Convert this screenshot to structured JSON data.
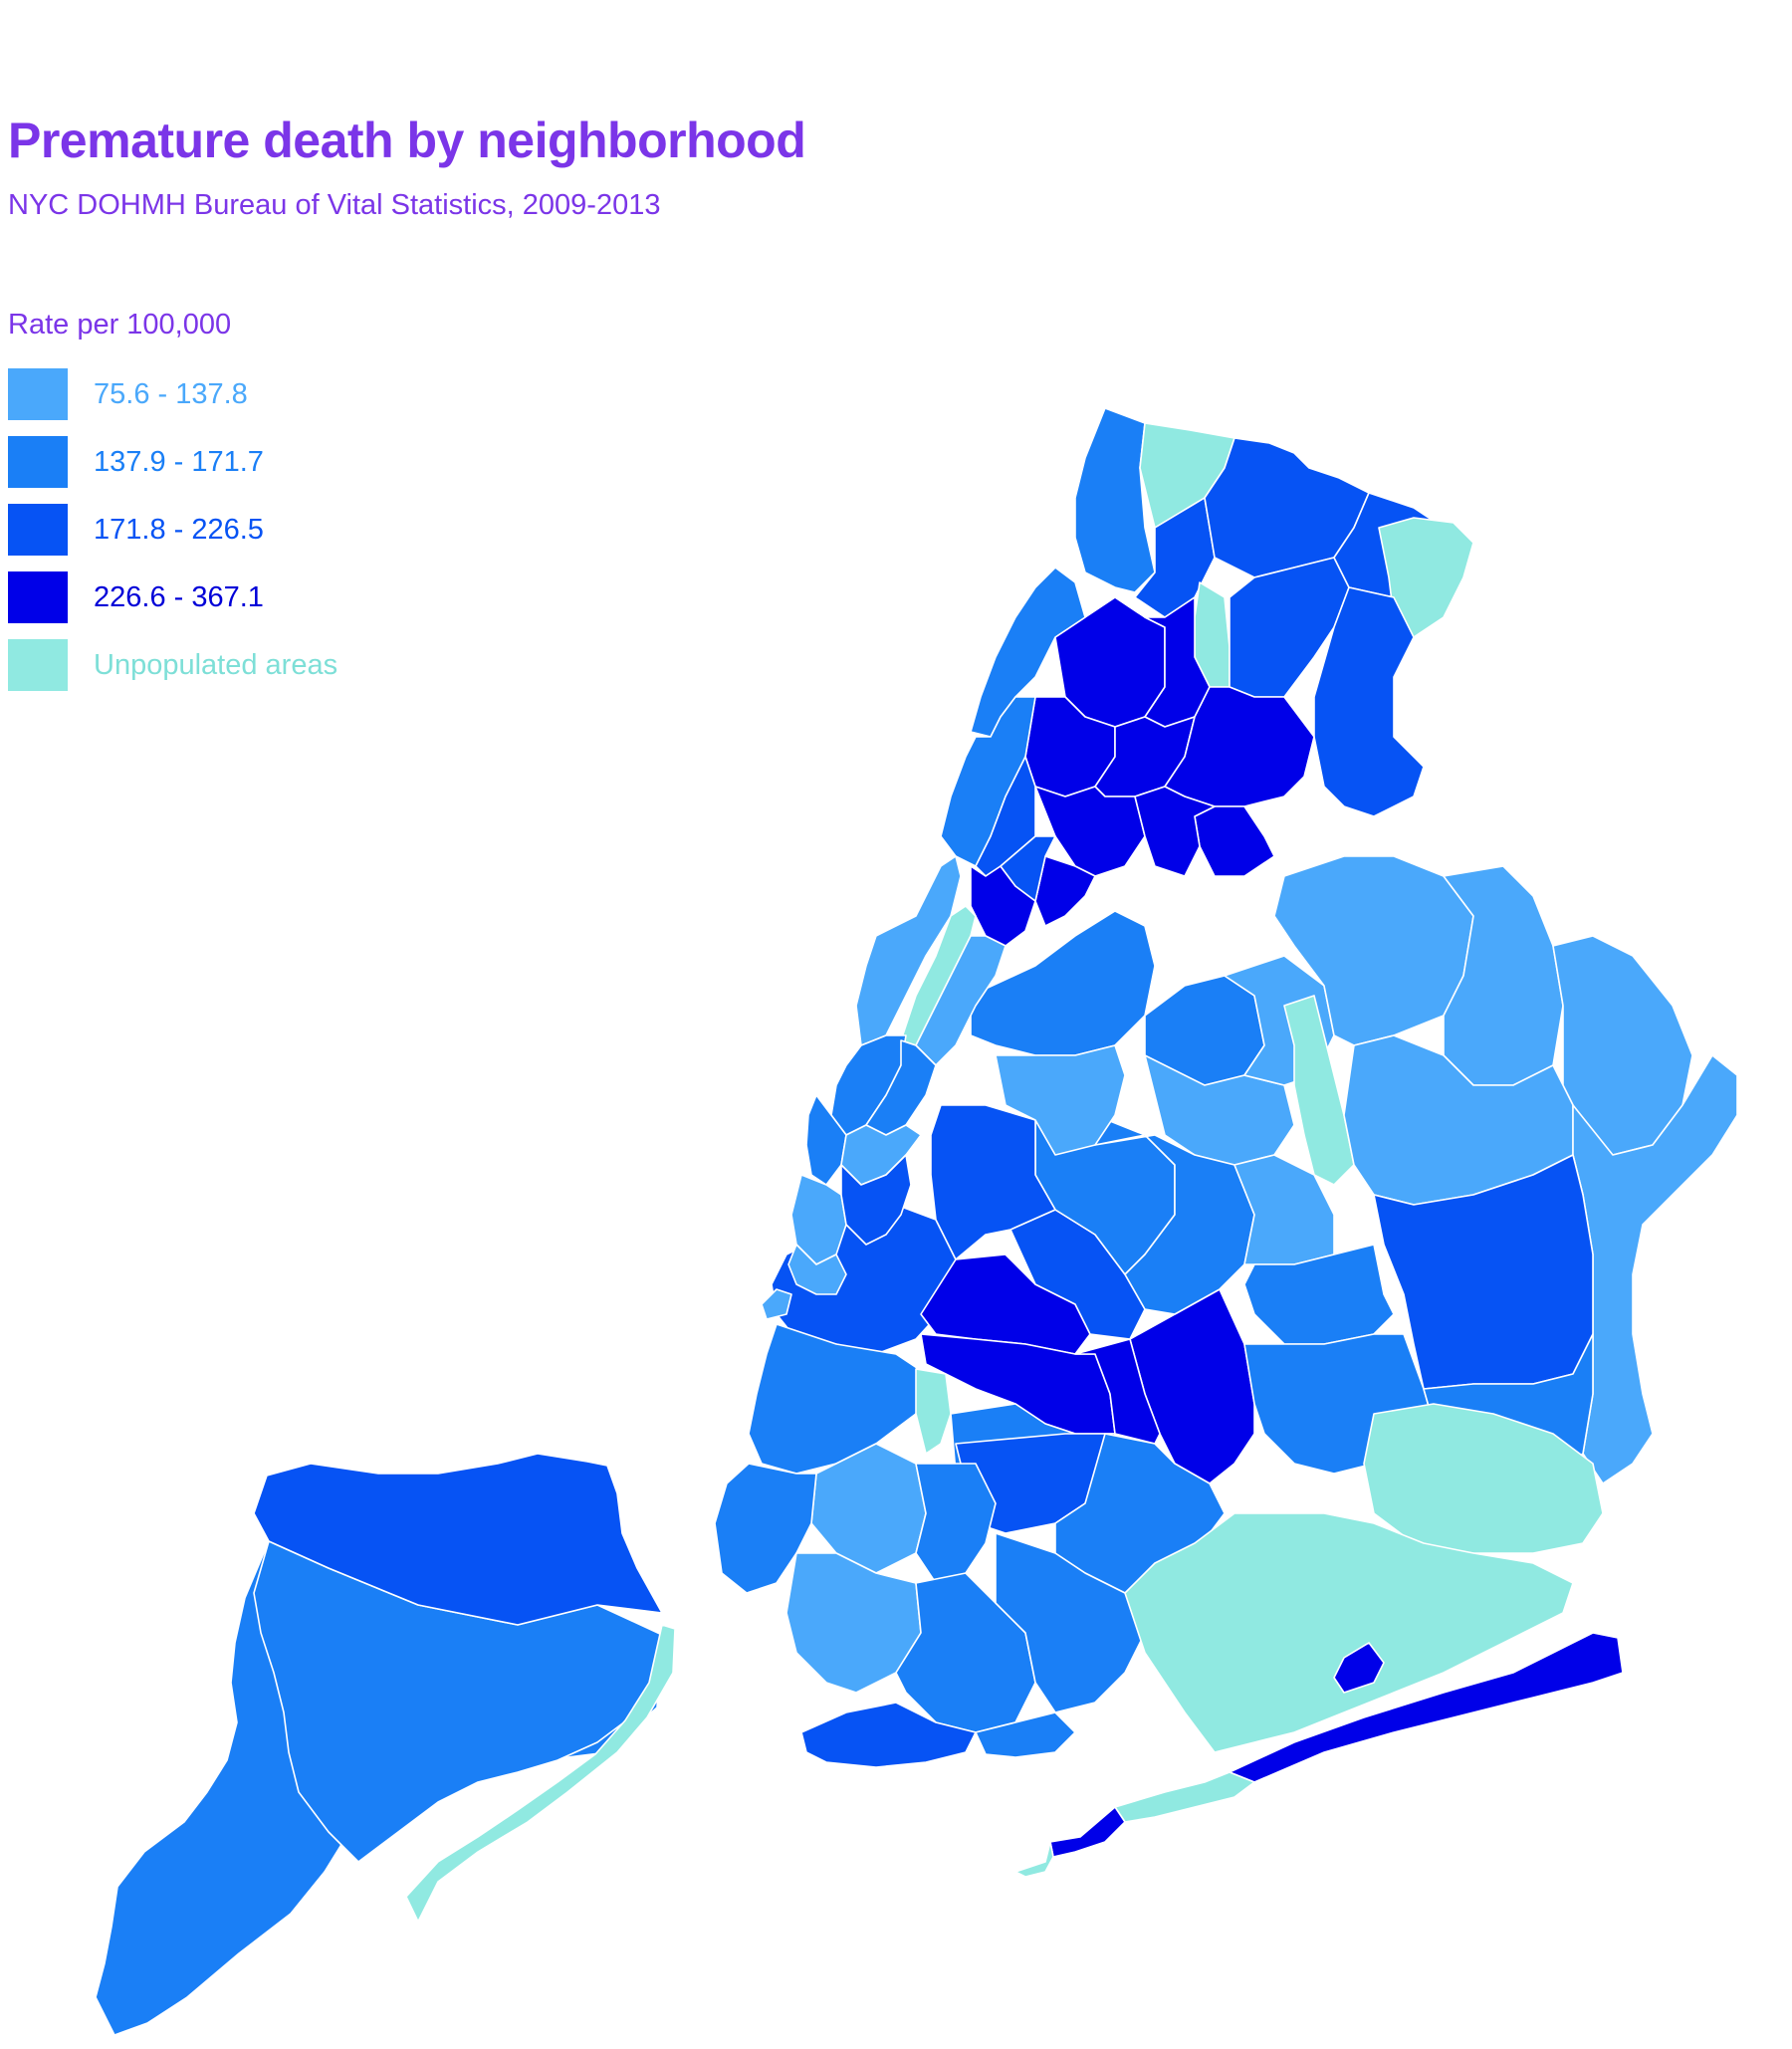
{
  "title": "Premature death by neighborhood",
  "subtitle": "NYC DOHMH Bureau of Vital Statistics, 2009-2013",
  "legend": {
    "title": "Rate per 100,000",
    "items": [
      {
        "label": "75.6 - 137.8",
        "color": "#4aa8fb",
        "text_color": "#4aa8fb"
      },
      {
        "label": "137.9 - 171.7",
        "color": "#1a7ff6",
        "text_color": "#1a7ff6"
      },
      {
        "label": "171.8 - 226.5",
        "color": "#0653f4",
        "text_color": "#0653f4"
      },
      {
        "label": "226.6 - 367.1",
        "color": "#0000e8",
        "text_color": "#0000d8"
      },
      {
        "label": "Unpopulated areas",
        "color": "#90e9e1",
        "text_color": "#7ddfd7"
      }
    ]
  }
}
